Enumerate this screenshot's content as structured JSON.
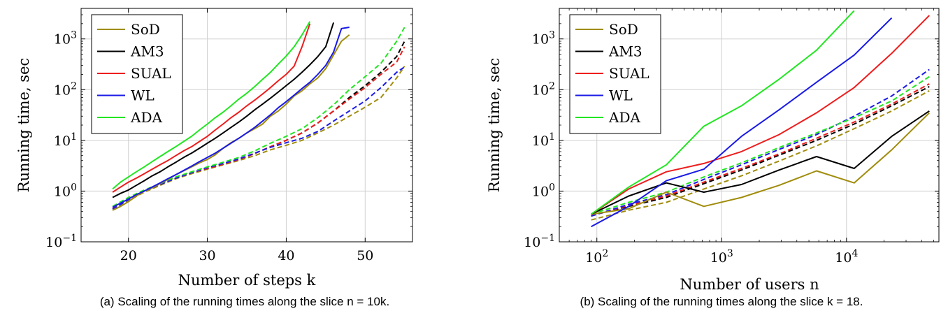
{
  "chart_data": [
    {
      "type": "line",
      "caption": "(a) Scaling of the running times along the slice n = 10k.",
      "xlabel": "Number of steps k",
      "ylabel": "Running time, sec",
      "yscale": "log",
      "xlim": [
        14,
        56
      ],
      "ylim": [
        0.1,
        4000
      ],
      "xticks": [
        20,
        30,
        40,
        50
      ],
      "yticks": [
        0.1,
        1,
        10,
        100,
        1000
      ],
      "ytick_labels": [
        [
          "10",
          "−1"
        ],
        [
          "10",
          "0"
        ],
        [
          "10",
          "1"
        ],
        [
          "10",
          "2"
        ],
        [
          "10",
          "3"
        ]
      ],
      "grid": true,
      "legend_position": "top-left",
      "colors": {
        "SoD": "#a08c0c",
        "AM3": "#000000",
        "SUAL": "#ee1c1c",
        "WL": "#1a1ae6",
        "ADA": "#22e622"
      },
      "series": [
        {
          "name": "SoD",
          "style": "solid",
          "x": [
            18,
            19,
            20,
            21,
            22,
            23,
            24,
            25,
            26,
            27,
            28,
            29,
            30,
            31,
            32,
            33,
            34,
            35,
            36,
            37,
            38,
            39,
            40,
            41,
            42,
            43,
            44,
            45,
            46,
            47,
            48
          ],
          "values": [
            0.42,
            0.5,
            0.62,
            0.8,
            1.0,
            1.15,
            1.4,
            1.7,
            2.1,
            2.5,
            3.0,
            3.6,
            4.2,
            5.2,
            7.0,
            9.0,
            11,
            14,
            17,
            21,
            30,
            38,
            52,
            75,
            95,
            130,
            170,
            260,
            480,
            900,
            1200
          ]
        },
        {
          "name": "AM3",
          "style": "solid",
          "x": [
            18,
            19,
            20,
            21,
            22,
            23,
            24,
            25,
            26,
            27,
            28,
            29,
            30,
            31,
            32,
            33,
            34,
            35,
            36,
            37,
            38,
            39,
            40,
            41,
            42,
            43,
            44,
            45,
            46
          ],
          "values": [
            0.75,
            0.9,
            1.05,
            1.3,
            1.6,
            2.0,
            2.4,
            3.0,
            3.7,
            4.6,
            5.6,
            7.0,
            8.8,
            11,
            14,
            18,
            23,
            30,
            40,
            52,
            68,
            90,
            120,
            160,
            220,
            310,
            450,
            700,
            2100
          ]
        },
        {
          "name": "SUAL",
          "style": "solid",
          "x": [
            18,
            19,
            20,
            21,
            22,
            23,
            24,
            25,
            26,
            27,
            28,
            29,
            30,
            31,
            32,
            33,
            34,
            35,
            36,
            37,
            38,
            39,
            40,
            41,
            42,
            43
          ],
          "values": [
            0.95,
            1.2,
            1.5,
            1.8,
            2.2,
            2.7,
            3.3,
            4.0,
            5.0,
            6.2,
            7.5,
            9.5,
            12,
            16,
            21,
            28,
            36,
            48,
            62,
            82,
            110,
            150,
            200,
            290,
            700,
            2000
          ]
        },
        {
          "name": "WL",
          "style": "solid",
          "x": [
            18,
            19,
            20,
            21,
            22,
            23,
            24,
            25,
            26,
            27,
            28,
            29,
            30,
            31,
            32,
            33,
            34,
            35,
            36,
            37,
            38,
            39,
            40,
            41,
            42,
            43,
            44,
            45,
            46,
            47,
            48
          ],
          "values": [
            0.48,
            0.58,
            0.7,
            0.85,
            1.0,
            1.2,
            1.45,
            1.75,
            2.1,
            2.55,
            3.1,
            3.8,
            4.6,
            5.6,
            7.0,
            8.8,
            11,
            14,
            18,
            24,
            32,
            44,
            58,
            78,
            105,
            140,
            200,
            300,
            550,
            1600,
            1700
          ]
        },
        {
          "name": "ADA",
          "style": "solid",
          "x": [
            18,
            19,
            20,
            21,
            22,
            23,
            24,
            25,
            26,
            27,
            28,
            29,
            30,
            31,
            32,
            33,
            34,
            35,
            36,
            37,
            38,
            39,
            40,
            41,
            42,
            43
          ],
          "values": [
            1.1,
            1.5,
            1.9,
            2.4,
            3.0,
            3.8,
            4.8,
            6.0,
            7.5,
            9.5,
            12,
            16,
            21,
            28,
            36,
            48,
            65,
            85,
            115,
            160,
            220,
            320,
            460,
            700,
            1200,
            2200
          ]
        },
        {
          "name": "SoD",
          "style": "dashed",
          "x": [
            18,
            20,
            22,
            24,
            26,
            28,
            30,
            32,
            34,
            36,
            38,
            40,
            42,
            44,
            46,
            48,
            50,
            52,
            54,
            55
          ],
          "values": [
            0.42,
            0.65,
            0.95,
            1.3,
            1.75,
            2.2,
            2.7,
            3.3,
            4.0,
            5.0,
            6.5,
            8.0,
            10,
            14,
            20,
            30,
            45,
            70,
            170,
            290
          ]
        },
        {
          "name": "AM3",
          "style": "dashed",
          "x": [
            18,
            20,
            22,
            24,
            26,
            28,
            30,
            32,
            34,
            36,
            38,
            40,
            42,
            44,
            46,
            48,
            50,
            52,
            54,
            55
          ],
          "values": [
            0.45,
            0.7,
            1.0,
            1.35,
            1.8,
            2.3,
            2.8,
            3.4,
            4.2,
            5.5,
            7.5,
            10,
            14,
            22,
            38,
            70,
            120,
            220,
            450,
            900
          ]
        },
        {
          "name": "SUAL",
          "style": "dashed",
          "x": [
            18,
            20,
            22,
            24,
            26,
            28,
            30,
            32,
            34,
            36,
            38,
            40,
            42,
            44,
            46,
            48,
            50,
            52,
            54,
            55
          ],
          "values": [
            0.45,
            0.7,
            1.0,
            1.35,
            1.8,
            2.3,
            2.8,
            3.4,
            4.2,
            5.5,
            7.5,
            10,
            14,
            22,
            38,
            65,
            110,
            200,
            350,
            700
          ]
        },
        {
          "name": "WL",
          "style": "dashed",
          "x": [
            18,
            20,
            22,
            24,
            26,
            28,
            30,
            32,
            34,
            36,
            38,
            40,
            42,
            44,
            46,
            48,
            50,
            52,
            54,
            55
          ],
          "values": [
            0.44,
            0.68,
            1.0,
            1.35,
            1.8,
            2.3,
            2.9,
            3.5,
            4.3,
            5.6,
            7.3,
            9.0,
            11,
            15,
            24,
            38,
            60,
            110,
            220,
            280
          ]
        },
        {
          "name": "ADA",
          "style": "dashed",
          "x": [
            18,
            20,
            22,
            24,
            26,
            28,
            30,
            32,
            34,
            36,
            38,
            40,
            42,
            44,
            46,
            48,
            50,
            52,
            54,
            55
          ],
          "values": [
            0.5,
            0.75,
            1.05,
            1.4,
            1.9,
            2.4,
            3.0,
            3.7,
            4.6,
            6.2,
            8.8,
            12,
            17,
            28,
            50,
            100,
            180,
            330,
            900,
            1700
          ]
        }
      ]
    },
    {
      "type": "line",
      "caption": "(b) Scaling of the running times along the slice k = 18.",
      "xlabel": "Number of users n",
      "ylabel": "Running time, sec",
      "xscale": "log",
      "yscale": "log",
      "xlim": [
        50,
        55000
      ],
      "ylim": [
        0.1,
        4000
      ],
      "xticks": [
        100,
        1000,
        10000
      ],
      "xtick_labels": [
        [
          "10",
          "2"
        ],
        [
          "10",
          "3"
        ],
        [
          "10",
          "4"
        ]
      ],
      "yticks": [
        0.1,
        1,
        10,
        100,
        1000
      ],
      "ytick_labels": [
        [
          "10",
          "−1"
        ],
        [
          "10",
          "0"
        ],
        [
          "10",
          "1"
        ],
        [
          "10",
          "2"
        ],
        [
          "10",
          "3"
        ]
      ],
      "grid": true,
      "legend_position": "top-left",
      "colors": {
        "SoD": "#a08c0c",
        "AM3": "#000000",
        "SUAL": "#ee1c1c",
        "WL": "#1a1ae6",
        "ADA": "#22e622"
      },
      "series": [
        {
          "name": "SoD",
          "style": "solid",
          "x": [
            90,
            180,
            360,
            720,
            1440,
            2880,
            5760,
            11520,
            23040,
            46080
          ],
          "values": [
            0.35,
            0.45,
            0.95,
            0.5,
            0.75,
            1.3,
            2.5,
            1.45,
            6.5,
            35
          ]
        },
        {
          "name": "AM3",
          "style": "solid",
          "x": [
            90,
            180,
            360,
            720,
            1440,
            2880,
            5760,
            11520,
            23040,
            46080
          ],
          "values": [
            0.35,
            0.8,
            1.45,
            0.95,
            1.35,
            2.6,
            4.8,
            2.8,
            12,
            38
          ]
        },
        {
          "name": "SUAL",
          "style": "solid",
          "x": [
            90,
            180,
            360,
            720,
            1440,
            2880,
            5760,
            11520,
            23040,
            46080
          ],
          "values": [
            0.35,
            1.1,
            2.4,
            3.5,
            6.0,
            13,
            35,
            110,
            520,
            2900
          ]
        },
        {
          "name": "WL",
          "style": "solid",
          "x": [
            90,
            180,
            360,
            720,
            1440,
            2880,
            5760,
            11520,
            23040
          ],
          "values": [
            0.2,
            0.5,
            1.6,
            2.7,
            12,
            40,
            140,
            480,
            2600
          ]
        },
        {
          "name": "ADA",
          "style": "solid",
          "x": [
            90,
            180,
            360,
            720,
            1440,
            2880,
            5760,
            11520
          ],
          "values": [
            0.35,
            1.2,
            3.3,
            19,
            48,
            160,
            600,
            3600
          ]
        },
        {
          "name": "SoD",
          "style": "dashed",
          "x": [
            90,
            180,
            360,
            720,
            1440,
            2880,
            5760,
            11520,
            23040,
            46080
          ],
          "values": [
            0.27,
            0.42,
            0.6,
            1.1,
            2.0,
            3.9,
            7.8,
            17,
            38,
            95
          ]
        },
        {
          "name": "AM3",
          "style": "dashed",
          "x": [
            90,
            180,
            360,
            720,
            1440,
            2880,
            5760,
            11520,
            23040,
            46080
          ],
          "values": [
            0.33,
            0.5,
            0.75,
            1.4,
            2.6,
            5.1,
            10,
            21,
            48,
            115
          ]
        },
        {
          "name": "SUAL",
          "style": "dashed",
          "x": [
            90,
            180,
            360,
            720,
            1440,
            2880,
            5760,
            11520,
            23040,
            46080
          ],
          "values": [
            0.33,
            0.52,
            0.8,
            1.5,
            2.8,
            5.4,
            11,
            23,
            52,
            130
          ]
        },
        {
          "name": "WL",
          "style": "dashed",
          "x": [
            90,
            180,
            360,
            720,
            1440,
            2880,
            5760,
            11520,
            23040,
            46080
          ],
          "values": [
            0.32,
            0.55,
            0.85,
            1.7,
            3.3,
            6.6,
            13,
            30,
            75,
            250
          ]
        },
        {
          "name": "ADA",
          "style": "dashed",
          "x": [
            90,
            180,
            360,
            720,
            1440,
            2880,
            5760,
            11520,
            23040,
            46080
          ],
          "values": [
            0.35,
            0.6,
            0.95,
            1.9,
            3.6,
            7.2,
            14,
            28,
            60,
            180
          ]
        }
      ]
    }
  ]
}
